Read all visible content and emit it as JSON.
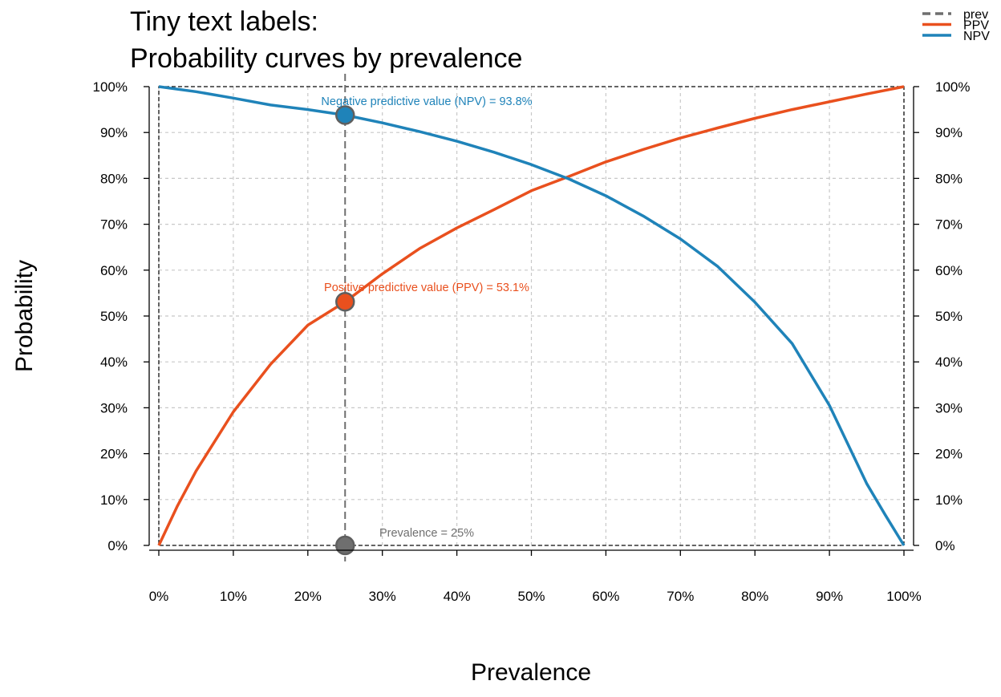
{
  "chart_data": {
    "type": "line",
    "title_line1": "Tiny text labels:",
    "title_line2": "Probability curves by prevalence",
    "xlabel": "Prevalence",
    "ylabel": "Probability",
    "xlim": [
      0,
      100
    ],
    "ylim": [
      0,
      100
    ],
    "xticks": [
      "0%",
      "10%",
      "20%",
      "30%",
      "40%",
      "50%",
      "60%",
      "70%",
      "80%",
      "90%",
      "100%"
    ],
    "yticks": [
      "0%",
      "10%",
      "20%",
      "30%",
      "40%",
      "50%",
      "60%",
      "70%",
      "80%",
      "90%",
      "100%"
    ],
    "grid": true,
    "legend_position": "top-right",
    "legend": [
      "prev",
      "PPV",
      "NPV"
    ],
    "series": [
      {
        "name": "PPV",
        "color": "#e9501e",
        "x": [
          0,
          2.5,
          5,
          10,
          15,
          20,
          25,
          30,
          35,
          40,
          45,
          50,
          55,
          60,
          65,
          70,
          75,
          80,
          85,
          90,
          95,
          100
        ],
        "values": [
          0,
          8.6,
          16.2,
          29.1,
          39.5,
          48.0,
          53.1,
          59.2,
          64.7,
          69.2,
          73.2,
          77.3,
          80.4,
          83.6,
          86.3,
          88.8,
          91.0,
          93.1,
          95.0,
          96.7,
          98.4,
          100
        ]
      },
      {
        "name": "NPV",
        "color": "#1f83b9",
        "x": [
          0,
          5,
          10,
          15,
          20,
          25,
          30,
          35,
          40,
          45,
          50,
          55,
          60,
          65,
          70,
          75,
          80,
          85,
          90,
          95,
          97.5,
          100
        ],
        "values": [
          100,
          98.9,
          97.5,
          96.0,
          95.0,
          93.8,
          92.1,
          90.2,
          88.1,
          85.7,
          83.0,
          79.9,
          76.2,
          71.8,
          66.8,
          60.8,
          53.0,
          44.0,
          30.5,
          13.5,
          6.6,
          0
        ]
      }
    ],
    "reference_line": {
      "name": "prev",
      "x": 25,
      "color": "#6f6f6f"
    },
    "points": [
      {
        "x": 25,
        "y": 93.8,
        "color": "#1f83b9"
      },
      {
        "x": 25,
        "y": 53.1,
        "color": "#e9501e"
      },
      {
        "x": 25,
        "y": 0,
        "color": "#6f6f6f"
      }
    ],
    "annotations": [
      {
        "text": "Negative predictive value (NPV) = 93.8%",
        "color": "#1f83b9"
      },
      {
        "text": "Positive predictive value (PPV) = 53.1%",
        "color": "#e9501e"
      },
      {
        "text": "Prevalence = 25%",
        "color": "#6f6f6f"
      }
    ]
  }
}
